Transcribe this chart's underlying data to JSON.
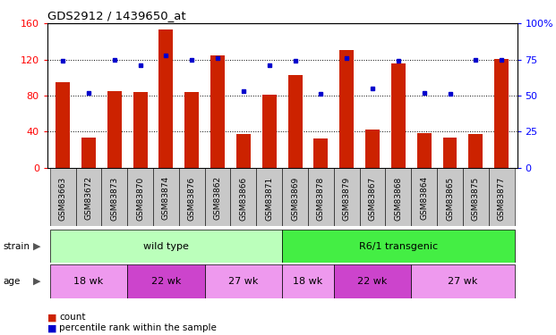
{
  "title": "GDS2912 / 1439650_at",
  "samples": [
    "GSM83663",
    "GSM83672",
    "GSM83873",
    "GSM83870",
    "GSM83874",
    "GSM83876",
    "GSM83862",
    "GSM83866",
    "GSM83871",
    "GSM83869",
    "GSM83878",
    "GSM83879",
    "GSM83867",
    "GSM83868",
    "GSM83864",
    "GSM83865",
    "GSM83875",
    "GSM83877"
  ],
  "counts": [
    95,
    33,
    85,
    84,
    153,
    84,
    125,
    37,
    81,
    103,
    32,
    130,
    42,
    116,
    38,
    33,
    37,
    121
  ],
  "percentiles": [
    74,
    52,
    75,
    71,
    78,
    75,
    76,
    53,
    71,
    74,
    51,
    76,
    55,
    74,
    52,
    51,
    75,
    75
  ],
  "left_ylim": [
    0,
    160
  ],
  "left_yticks": [
    0,
    40,
    80,
    120,
    160
  ],
  "right_yticks": [
    0,
    25,
    50,
    75,
    100
  ],
  "right_yticklabels": [
    "0",
    "25",
    "50",
    "75",
    "100%"
  ],
  "bar_color": "#cc2200",
  "dot_color": "#0000cc",
  "tick_bg_color": "#c8c8c8",
  "wt_color": "#bbffbb",
  "tg_color": "#44ee44",
  "age_colors": [
    "#ee99ee",
    "#cc44cc",
    "#ee99ee",
    "#ee99ee",
    "#cc44cc",
    "#ee99ee"
  ],
  "age_groups": [
    {
      "label": "18 wk",
      "s": 0,
      "e": 2
    },
    {
      "label": "22 wk",
      "s": 3,
      "e": 5
    },
    {
      "label": "27 wk",
      "s": 6,
      "e": 8
    },
    {
      "label": "18 wk",
      "s": 9,
      "e": 10
    },
    {
      "label": "22 wk",
      "s": 11,
      "e": 13
    },
    {
      "label": "27 wk",
      "s": 14,
      "e": 17
    }
  ],
  "legend_count_label": "count",
  "legend_pct_label": "percentile rank within the sample",
  "bar_width": 0.55
}
